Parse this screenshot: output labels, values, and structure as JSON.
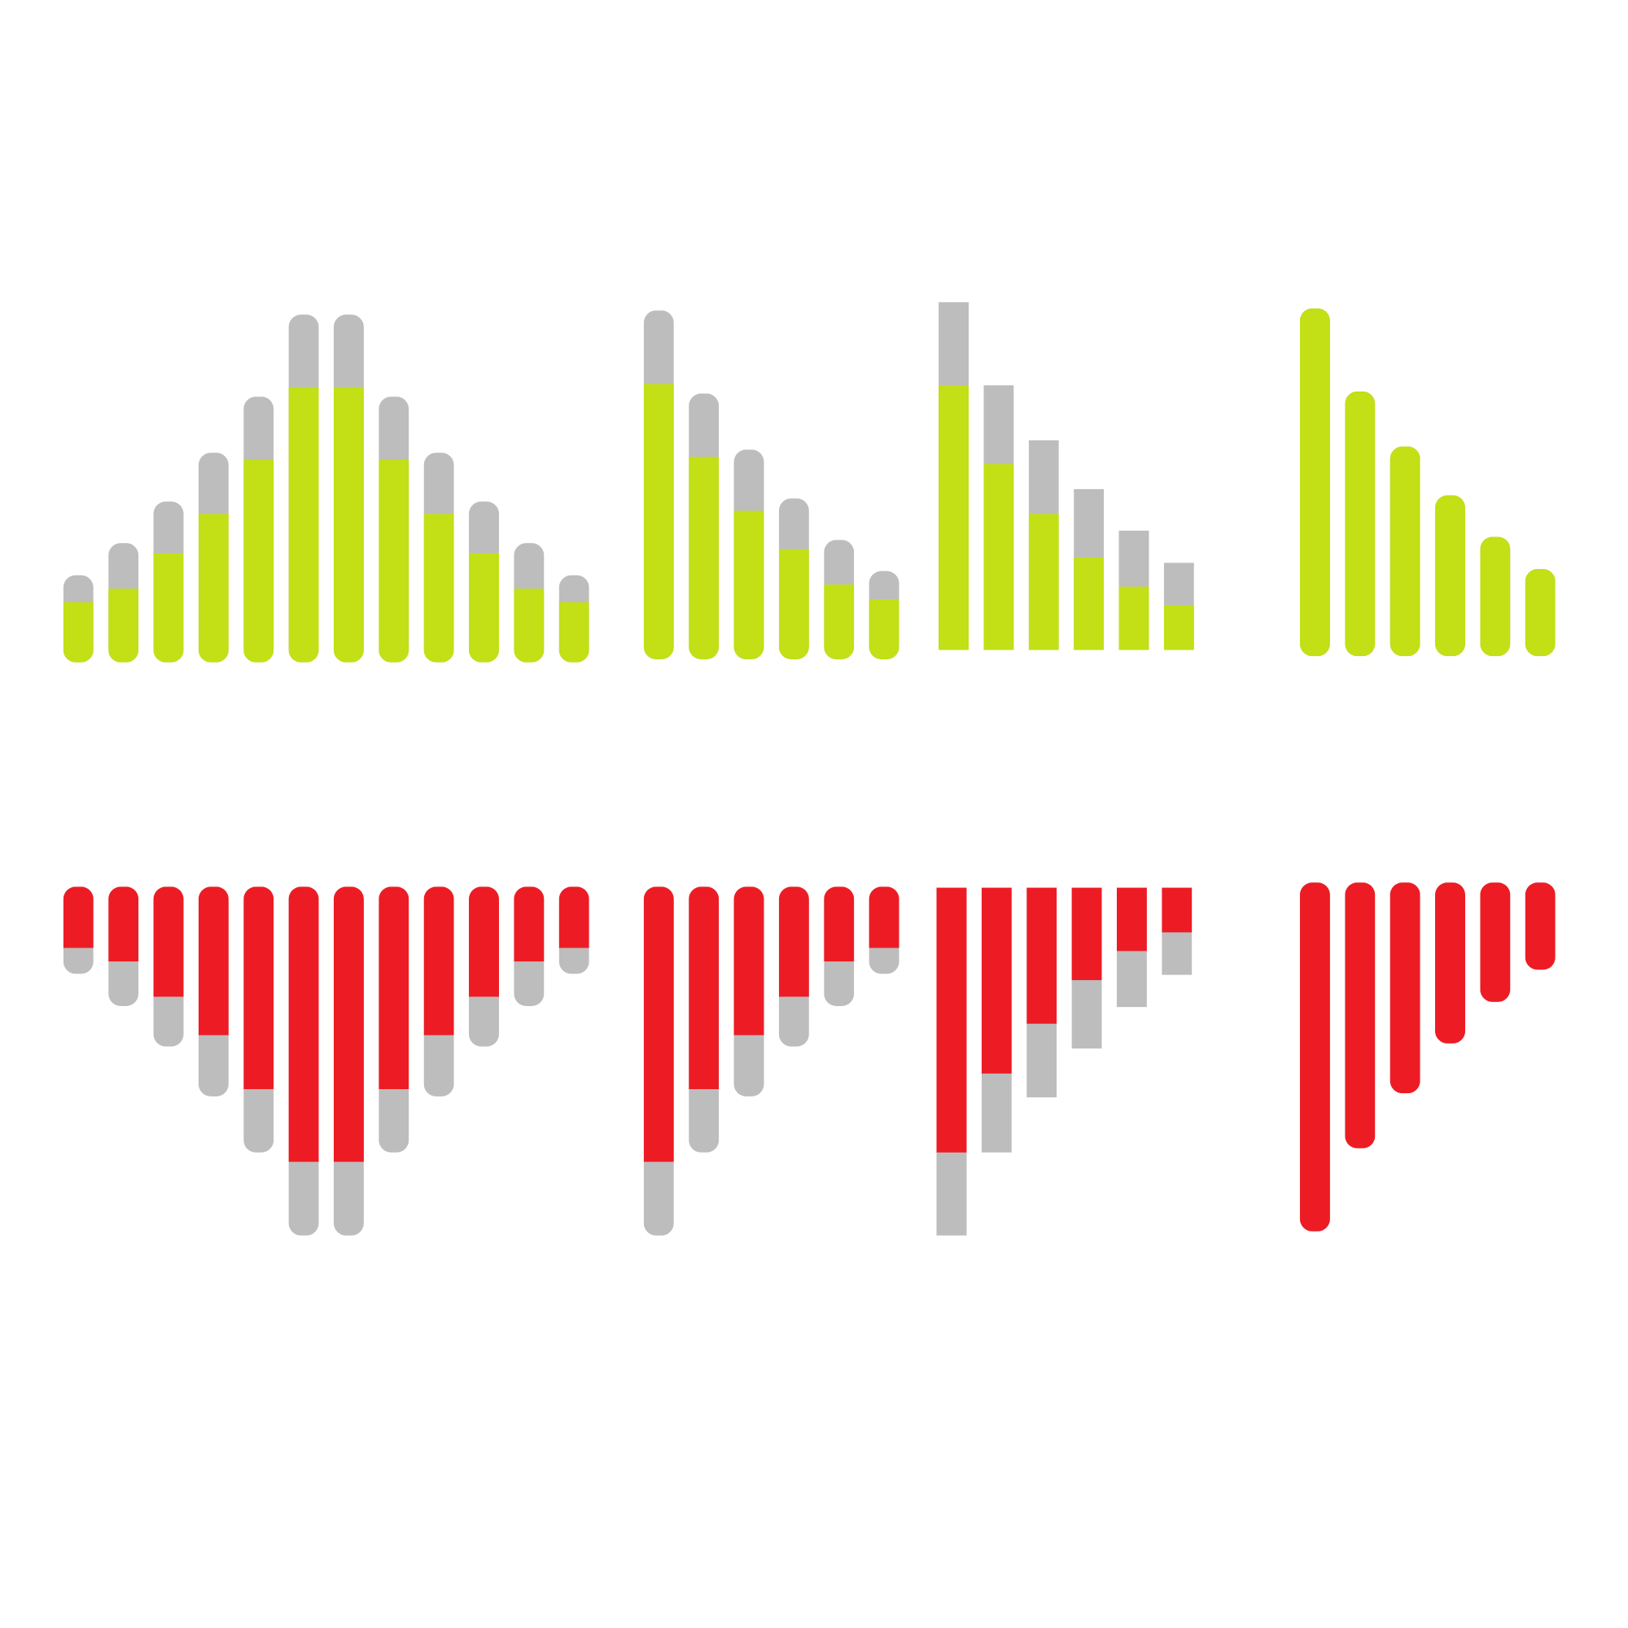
{
  "colors": {
    "positive": "#C2E015",
    "negative": "#ED1C24",
    "track": "#BDBDBD"
  },
  "chart_data": [
    {
      "type": "bar",
      "name": "level-meter-up-symmetric",
      "direction": "up",
      "style": "rounded",
      "color": "positive",
      "totals": [
        84,
        115,
        155,
        202,
        256,
        335,
        335,
        256,
        202,
        155,
        115,
        84
      ],
      "values": [
        58,
        71,
        105,
        143,
        195,
        265,
        265,
        195,
        143,
        105,
        71,
        58
      ]
    },
    {
      "type": "bar",
      "name": "level-meter-up-descending",
      "direction": "up",
      "style": "rounded",
      "color": "positive",
      "totals": [
        336,
        256,
        202,
        155,
        115,
        85
      ],
      "values": [
        265,
        195,
        143,
        106,
        72,
        58
      ]
    },
    {
      "type": "bar",
      "name": "level-meter-up-square",
      "direction": "up",
      "style": "square",
      "color": "positive",
      "totals": [
        335,
        255,
        202,
        155,
        115,
        84
      ],
      "values": [
        255,
        179,
        131,
        89,
        61,
        43
      ]
    },
    {
      "type": "bar",
      "name": "level-meter-up-solid",
      "direction": "up",
      "style": "rounded",
      "color": "positive",
      "totals": [
        335,
        255,
        202,
        155,
        115,
        84
      ],
      "values": [
        335,
        255,
        202,
        155,
        115,
        84
      ]
    },
    {
      "type": "bar",
      "name": "level-meter-down-symmetric",
      "direction": "down",
      "style": "rounded",
      "color": "negative",
      "totals": [
        84,
        115,
        154,
        202,
        256,
        336,
        336,
        256,
        202,
        154,
        115,
        84
      ],
      "values": [
        59,
        72,
        106,
        143,
        195,
        265,
        265,
        195,
        143,
        106,
        72,
        59
      ]
    },
    {
      "type": "bar",
      "name": "level-meter-down-descending",
      "direction": "down",
      "style": "rounded",
      "color": "negative",
      "totals": [
        336,
        256,
        202,
        154,
        115,
        84
      ],
      "values": [
        265,
        195,
        143,
        106,
        72,
        59
      ]
    },
    {
      "type": "bar",
      "name": "level-meter-down-square",
      "direction": "down",
      "style": "square",
      "color": "negative",
      "totals": [
        335,
        255,
        202,
        155,
        115,
        84
      ],
      "values": [
        255,
        179,
        131,
        89,
        61,
        43
      ]
    },
    {
      "type": "bar",
      "name": "level-meter-down-solid",
      "direction": "down",
      "style": "rounded",
      "color": "negative",
      "totals": [
        336,
        256,
        203,
        155,
        115,
        84
      ],
      "values": [
        336,
        256,
        203,
        155,
        115,
        84
      ]
    }
  ]
}
